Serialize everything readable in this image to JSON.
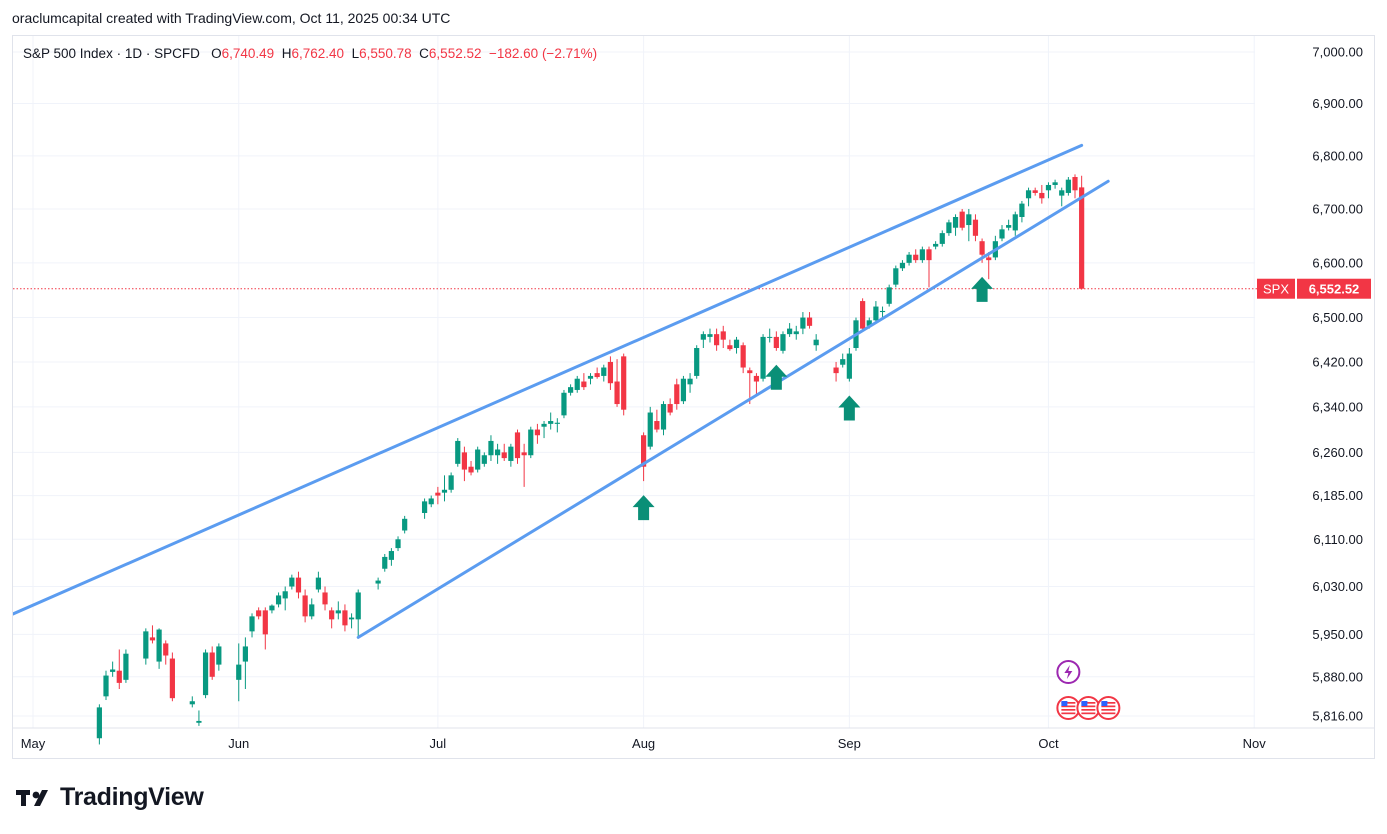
{
  "caption": "oraclumcapital created with TradingView.com, Oct 11, 2025 00:34 UTC",
  "legend": {
    "symbol": "S&P 500 Index · 1D · SPCFD",
    "open_label": "O",
    "open": "6,740.49",
    "high_label": "H",
    "high": "6,762.40",
    "low_label": "L",
    "low": "6,550.78",
    "close_label": "C",
    "close": "6,552.52",
    "change": "−182.60 (−2.71%)"
  },
  "price_tag": {
    "symbol": "SPX",
    "value": "6,552.52"
  },
  "logo_text": "TradingView",
  "colors": {
    "up": "#089981",
    "down": "#f23645",
    "trendline": "#5b9cf0",
    "arrow": "#0a8f77",
    "grid": "#f0f3fa"
  },
  "chart_data": {
    "type": "candlestick",
    "title": "S&P 500 Index · 1D · SPCFD",
    "y_ticks": [
      "7,000.00",
      "6,900.00",
      "6,800.00",
      "6,700.00",
      "6,600.00",
      "6,500.00",
      "6,420.00",
      "6,340.00",
      "6,260.00",
      "6,185.00",
      "6,110.00",
      "6,030.00",
      "5,950.00",
      "5,880.00",
      "5,816.00"
    ],
    "y_tick_values": [
      7000,
      6900,
      6800,
      6700,
      6600,
      6500,
      6420,
      6340,
      6260,
      6185,
      6110,
      6030,
      5950,
      5880,
      5816
    ],
    "x_ticks": [
      "May",
      "Jun",
      "Jul",
      "Aug",
      "Sep",
      "Oct",
      "Nov"
    ],
    "x_tick_days": [
      0,
      31,
      61,
      92,
      123,
      153,
      184
    ],
    "scale": "log",
    "candles": [
      {
        "d": 10,
        "o": 5780,
        "h": 5835,
        "l": 5770,
        "c": 5830
      },
      {
        "d": 11,
        "o": 5848,
        "h": 5890,
        "l": 5842,
        "c": 5882
      },
      {
        "d": 12,
        "o": 5888,
        "h": 5905,
        "l": 5880,
        "c": 5892
      },
      {
        "d": 13,
        "o": 5890,
        "h": 5925,
        "l": 5860,
        "c": 5870
      },
      {
        "d": 14,
        "o": 5875,
        "h": 5925,
        "l": 5870,
        "c": 5918
      },
      {
        "d": 17,
        "o": 5910,
        "h": 5960,
        "l": 5900,
        "c": 5955
      },
      {
        "d": 18,
        "o": 5945,
        "h": 5965,
        "l": 5935,
        "c": 5940
      },
      {
        "d": 19,
        "o": 5905,
        "h": 5960,
        "l": 5893,
        "c": 5958
      },
      {
        "d": 20,
        "o": 5935,
        "h": 5940,
        "l": 5900,
        "c": 5915
      },
      {
        "d": 21,
        "o": 5910,
        "h": 5920,
        "l": 5840,
        "c": 5845
      },
      {
        "d": 24,
        "o": 5835,
        "h": 5848,
        "l": 5830,
        "c": 5840
      },
      {
        "d": 25,
        "o": 5805,
        "h": 5825,
        "l": 5800,
        "c": 5808
      },
      {
        "d": 26,
        "o": 5850,
        "h": 5925,
        "l": 5845,
        "c": 5920
      },
      {
        "d": 27,
        "o": 5920,
        "h": 5930,
        "l": 5875,
        "c": 5880
      },
      {
        "d": 28,
        "o": 5900,
        "h": 5935,
        "l": 5890,
        "c": 5930
      },
      {
        "d": 31,
        "o": 5875,
        "h": 5935,
        "l": 5840,
        "c": 5900
      },
      {
        "d": 32,
        "o": 5905,
        "h": 5945,
        "l": 5860,
        "c": 5930
      },
      {
        "d": 33,
        "o": 5955,
        "h": 5985,
        "l": 5945,
        "c": 5980
      },
      {
        "d": 34,
        "o": 5990,
        "h": 5995,
        "l": 5975,
        "c": 5980
      },
      {
        "d": 35,
        "o": 5990,
        "h": 5995,
        "l": 5925,
        "c": 5950
      },
      {
        "d": 36,
        "o": 5990,
        "h": 6000,
        "l": 5985,
        "c": 5998
      },
      {
        "d": 37,
        "o": 6000,
        "h": 6020,
        "l": 5995,
        "c": 6015
      },
      {
        "d": 38,
        "o": 6010,
        "h": 6030,
        "l": 5990,
        "c": 6022
      },
      {
        "d": 39,
        "o": 6030,
        "h": 6050,
        "l": 6025,
        "c": 6045
      },
      {
        "d": 40,
        "o": 6045,
        "h": 6055,
        "l": 6010,
        "c": 6020
      },
      {
        "d": 41,
        "o": 6015,
        "h": 6025,
        "l": 5970,
        "c": 5980
      },
      {
        "d": 42,
        "o": 5980,
        "h": 6010,
        "l": 5975,
        "c": 6000
      },
      {
        "d": 43,
        "o": 6025,
        "h": 6055,
        "l": 6020,
        "c": 6045
      },
      {
        "d": 44,
        "o": 6020,
        "h": 6030,
        "l": 5990,
        "c": 6000
      },
      {
        "d": 45,
        "o": 5990,
        "h": 5995,
        "l": 5960,
        "c": 5975
      },
      {
        "d": 46,
        "o": 5985,
        "h": 6005,
        "l": 5975,
        "c": 5990
      },
      {
        "d": 47,
        "o": 5990,
        "h": 6000,
        "l": 5955,
        "c": 5965
      },
      {
        "d": 48,
        "o": 5975,
        "h": 5985,
        "l": 5960,
        "c": 5978
      },
      {
        "d": 49,
        "o": 5975,
        "h": 6025,
        "l": 5945,
        "c": 6020
      },
      {
        "d": 52,
        "o": 6035,
        "h": 6045,
        "l": 6025,
        "c": 6040
      },
      {
        "d": 53,
        "o": 6060,
        "h": 6085,
        "l": 6055,
        "c": 6080
      },
      {
        "d": 54,
        "o": 6075,
        "h": 6095,
        "l": 6065,
        "c": 6090
      },
      {
        "d": 55,
        "o": 6095,
        "h": 6115,
        "l": 6090,
        "c": 6110
      },
      {
        "d": 56,
        "o": 6125,
        "h": 6150,
        "l": 6120,
        "c": 6145
      },
      {
        "d": 59,
        "o": 6155,
        "h": 6180,
        "l": 6145,
        "c": 6175
      },
      {
        "d": 60,
        "o": 6170,
        "h": 6185,
        "l": 6165,
        "c": 6180
      },
      {
        "d": 61,
        "o": 6190,
        "h": 6200,
        "l": 6170,
        "c": 6185
      },
      {
        "d": 62,
        "o": 6190,
        "h": 6220,
        "l": 6175,
        "c": 6195
      },
      {
        "d": 63,
        "o": 6195,
        "h": 6225,
        "l": 6190,
        "c": 6220
      },
      {
        "d": 64,
        "o": 6240,
        "h": 6285,
        "l": 6235,
        "c": 6280
      },
      {
        "d": 65,
        "o": 6260,
        "h": 6270,
        "l": 6210,
        "c": 6230
      },
      {
        "d": 66,
        "o": 6235,
        "h": 6245,
        "l": 6220,
        "c": 6225
      },
      {
        "d": 67,
        "o": 6230,
        "h": 6270,
        "l": 6225,
        "c": 6265
      },
      {
        "d": 68,
        "o": 6240,
        "h": 6260,
        "l": 6235,
        "c": 6255
      },
      {
        "d": 69,
        "o": 6255,
        "h": 6290,
        "l": 6245,
        "c": 6280
      },
      {
        "d": 70,
        "o": 6255,
        "h": 6275,
        "l": 6240,
        "c": 6265
      },
      {
        "d": 71,
        "o": 6260,
        "h": 6275,
        "l": 6245,
        "c": 6250
      },
      {
        "d": 72,
        "o": 6245,
        "h": 6275,
        "l": 6235,
        "c": 6270
      },
      {
        "d": 73,
        "o": 6295,
        "h": 6300,
        "l": 6240,
        "c": 6250
      },
      {
        "d": 74,
        "o": 6260,
        "h": 6275,
        "l": 6200,
        "c": 6255
      },
      {
        "d": 75,
        "o": 6255,
        "h": 6305,
        "l": 6250,
        "c": 6300
      },
      {
        "d": 76,
        "o": 6300,
        "h": 6310,
        "l": 6275,
        "c": 6290
      },
      {
        "d": 77,
        "o": 6305,
        "h": 6315,
        "l": 6285,
        "c": 6310
      },
      {
        "d": 78,
        "o": 6310,
        "h": 6330,
        "l": 6300,
        "c": 6315
      },
      {
        "d": 79,
        "o": 6310,
        "h": 6320,
        "l": 6295,
        "c": 6312
      },
      {
        "d": 80,
        "o": 6325,
        "h": 6370,
        "l": 6320,
        "c": 6365
      },
      {
        "d": 81,
        "o": 6365,
        "h": 6380,
        "l": 6360,
        "c": 6375
      },
      {
        "d": 82,
        "o": 6370,
        "h": 6395,
        "l": 6365,
        "c": 6390
      },
      {
        "d": 83,
        "o": 6385,
        "h": 6400,
        "l": 6370,
        "c": 6375
      },
      {
        "d": 84,
        "o": 6390,
        "h": 6400,
        "l": 6380,
        "c": 6395
      },
      {
        "d": 85,
        "o": 6400,
        "h": 6410,
        "l": 6390,
        "c": 6393
      },
      {
        "d": 86,
        "o": 6395,
        "h": 6415,
        "l": 6385,
        "c": 6410
      },
      {
        "d": 87,
        "o": 6420,
        "h": 6430,
        "l": 6370,
        "c": 6382
      },
      {
        "d": 88,
        "o": 6385,
        "h": 6425,
        "l": 6340,
        "c": 6345
      },
      {
        "d": 89,
        "o": 6430,
        "h": 6435,
        "l": 6325,
        "c": 6335
      },
      {
        "d": 92,
        "o": 6290,
        "h": 6295,
        "l": 6210,
        "c": 6235
      },
      {
        "d": 93,
        "o": 6270,
        "h": 6340,
        "l": 6265,
        "c": 6330
      },
      {
        "d": 94,
        "o": 6315,
        "h": 6335,
        "l": 6295,
        "c": 6300
      },
      {
        "d": 95,
        "o": 6300,
        "h": 6350,
        "l": 6290,
        "c": 6345
      },
      {
        "d": 96,
        "o": 6345,
        "h": 6355,
        "l": 6325,
        "c": 6330
      },
      {
        "d": 97,
        "o": 6380,
        "h": 6390,
        "l": 6335,
        "c": 6345
      },
      {
        "d": 98,
        "o": 6350,
        "h": 6395,
        "l": 6345,
        "c": 6390
      },
      {
        "d": 99,
        "o": 6380,
        "h": 6400,
        "l": 6365,
        "c": 6390
      },
      {
        "d": 100,
        "o": 6395,
        "h": 6450,
        "l": 6390,
        "c": 6445
      },
      {
        "d": 101,
        "o": 6460,
        "h": 6475,
        "l": 6445,
        "c": 6470
      },
      {
        "d": 102,
        "o": 6465,
        "h": 6480,
        "l": 6455,
        "c": 6470
      },
      {
        "d": 103,
        "o": 6470,
        "h": 6480,
        "l": 6440,
        "c": 6450
      },
      {
        "d": 104,
        "o": 6475,
        "h": 6485,
        "l": 6445,
        "c": 6460
      },
      {
        "d": 105,
        "o": 6450,
        "h": 6460,
        "l": 6440,
        "c": 6443
      },
      {
        "d": 106,
        "o": 6445,
        "h": 6465,
        "l": 6435,
        "c": 6460
      },
      {
        "d": 107,
        "o": 6450,
        "h": 6455,
        "l": 6400,
        "c": 6410
      },
      {
        "d": 108,
        "o": 6405,
        "h": 6410,
        "l": 6345,
        "c": 6400
      },
      {
        "d": 109,
        "o": 6395,
        "h": 6400,
        "l": 6360,
        "c": 6385
      },
      {
        "d": 110,
        "o": 6390,
        "h": 6470,
        "l": 6385,
        "c": 6465
      },
      {
        "d": 111,
        "o": 6465,
        "h": 6480,
        "l": 6455,
        "c": 6465
      },
      {
        "d": 112,
        "o": 6465,
        "h": 6475,
        "l": 6440,
        "c": 6445
      },
      {
        "d": 113,
        "o": 6440,
        "h": 6475,
        "l": 6435,
        "c": 6470
      },
      {
        "d": 114,
        "o": 6470,
        "h": 6490,
        "l": 6465,
        "c": 6480
      },
      {
        "d": 115,
        "o": 6470,
        "h": 6485,
        "l": 6460,
        "c": 6475
      },
      {
        "d": 116,
        "o": 6480,
        "h": 6510,
        "l": 6470,
        "c": 6500
      },
      {
        "d": 117,
        "o": 6500,
        "h": 6510,
        "l": 6480,
        "c": 6485
      },
      {
        "d": 118,
        "o": 6450,
        "h": 6470,
        "l": 6440,
        "c": 6460
      },
      {
        "d": 121,
        "o": 6410,
        "h": 6420,
        "l": 6385,
        "c": 6400
      },
      {
        "d": 122,
        "o": 6415,
        "h": 6435,
        "l": 6410,
        "c": 6425
      },
      {
        "d": 123,
        "o": 6390,
        "h": 6445,
        "l": 6385,
        "c": 6435
      },
      {
        "d": 124,
        "o": 6445,
        "h": 6500,
        "l": 6440,
        "c": 6495
      },
      {
        "d": 125,
        "o": 6530,
        "h": 6535,
        "l": 6475,
        "c": 6480
      },
      {
        "d": 126,
        "o": 6485,
        "h": 6500,
        "l": 6480,
        "c": 6495
      },
      {
        "d": 127,
        "o": 6495,
        "h": 6530,
        "l": 6490,
        "c": 6520
      },
      {
        "d": 128,
        "o": 6510,
        "h": 6520,
        "l": 6500,
        "c": 6512
      },
      {
        "d": 129,
        "o": 6525,
        "h": 6560,
        "l": 6520,
        "c": 6555
      },
      {
        "d": 130,
        "o": 6560,
        "h": 6595,
        "l": 6555,
        "c": 6590
      },
      {
        "d": 131,
        "o": 6590,
        "h": 6605,
        "l": 6585,
        "c": 6600
      },
      {
        "d": 132,
        "o": 6600,
        "h": 6620,
        "l": 6595,
        "c": 6615
      },
      {
        "d": 133,
        "o": 6615,
        "h": 6625,
        "l": 6600,
        "c": 6605
      },
      {
        "d": 134,
        "o": 6605,
        "h": 6630,
        "l": 6600,
        "c": 6625
      },
      {
        "d": 135,
        "o": 6625,
        "h": 6630,
        "l": 6555,
        "c": 6605
      },
      {
        "d": 136,
        "o": 6630,
        "h": 6640,
        "l": 6625,
        "c": 6635
      },
      {
        "d": 137,
        "o": 6635,
        "h": 6660,
        "l": 6630,
        "c": 6655
      },
      {
        "d": 138,
        "o": 6655,
        "h": 6680,
        "l": 6650,
        "c": 6675
      },
      {
        "d": 139,
        "o": 6665,
        "h": 6690,
        "l": 6650,
        "c": 6685
      },
      {
        "d": 140,
        "o": 6695,
        "h": 6700,
        "l": 6660,
        "c": 6665
      },
      {
        "d": 141,
        "o": 6670,
        "h": 6700,
        "l": 6640,
        "c": 6690
      },
      {
        "d": 142,
        "o": 6680,
        "h": 6690,
        "l": 6640,
        "c": 6650
      },
      {
        "d": 143,
        "o": 6640,
        "h": 6645,
        "l": 6600,
        "c": 6615
      },
      {
        "d": 144,
        "o": 6610,
        "h": 6620,
        "l": 6570,
        "c": 6605
      },
      {
        "d": 145,
        "o": 6610,
        "h": 6650,
        "l": 6605,
        "c": 6640
      },
      {
        "d": 146,
        "o": 6645,
        "h": 6670,
        "l": 6640,
        "c": 6662
      },
      {
        "d": 147,
        "o": 6665,
        "h": 6680,
        "l": 6660,
        "c": 6670
      },
      {
        "d": 148,
        "o": 6660,
        "h": 6695,
        "l": 6650,
        "c": 6690
      },
      {
        "d": 149,
        "o": 6685,
        "h": 6715,
        "l": 6675,
        "c": 6710
      },
      {
        "d": 150,
        "o": 6720,
        "h": 6740,
        "l": 6705,
        "c": 6735
      },
      {
        "d": 151,
        "o": 6735,
        "h": 6740,
        "l": 6725,
        "c": 6730
      },
      {
        "d": 152,
        "o": 6730,
        "h": 6745,
        "l": 6710,
        "c": 6720
      },
      {
        "d": 153,
        "o": 6735,
        "h": 6750,
        "l": 6720,
        "c": 6745
      },
      {
        "d": 154,
        "o": 6745,
        "h": 6755,
        "l": 6738,
        "c": 6750
      },
      {
        "d": 155,
        "o": 6725,
        "h": 6740,
        "l": 6705,
        "c": 6735
      },
      {
        "d": 156,
        "o": 6730,
        "h": 6760,
        "l": 6725,
        "c": 6755
      },
      {
        "d": 157,
        "o": 6760,
        "h": 6765,
        "l": 6720,
        "c": 6735
      },
      {
        "d": 158,
        "o": 6740.49,
        "h": 6762.4,
        "l": 6550.78,
        "c": 6552.52
      }
    ],
    "trendlines": [
      {
        "name": "upper channel line",
        "from": {
          "d": -9,
          "v": 5955
        },
        "to": {
          "d": 158,
          "v": 6820
        }
      },
      {
        "name": "lower channel line",
        "from": {
          "d": 49,
          "v": 5945
        },
        "to": {
          "d": 162,
          "v": 6752
        }
      }
    ],
    "support_arrows_days": [
      92,
      112,
      123,
      143
    ],
    "last_price": 6552.52
  }
}
